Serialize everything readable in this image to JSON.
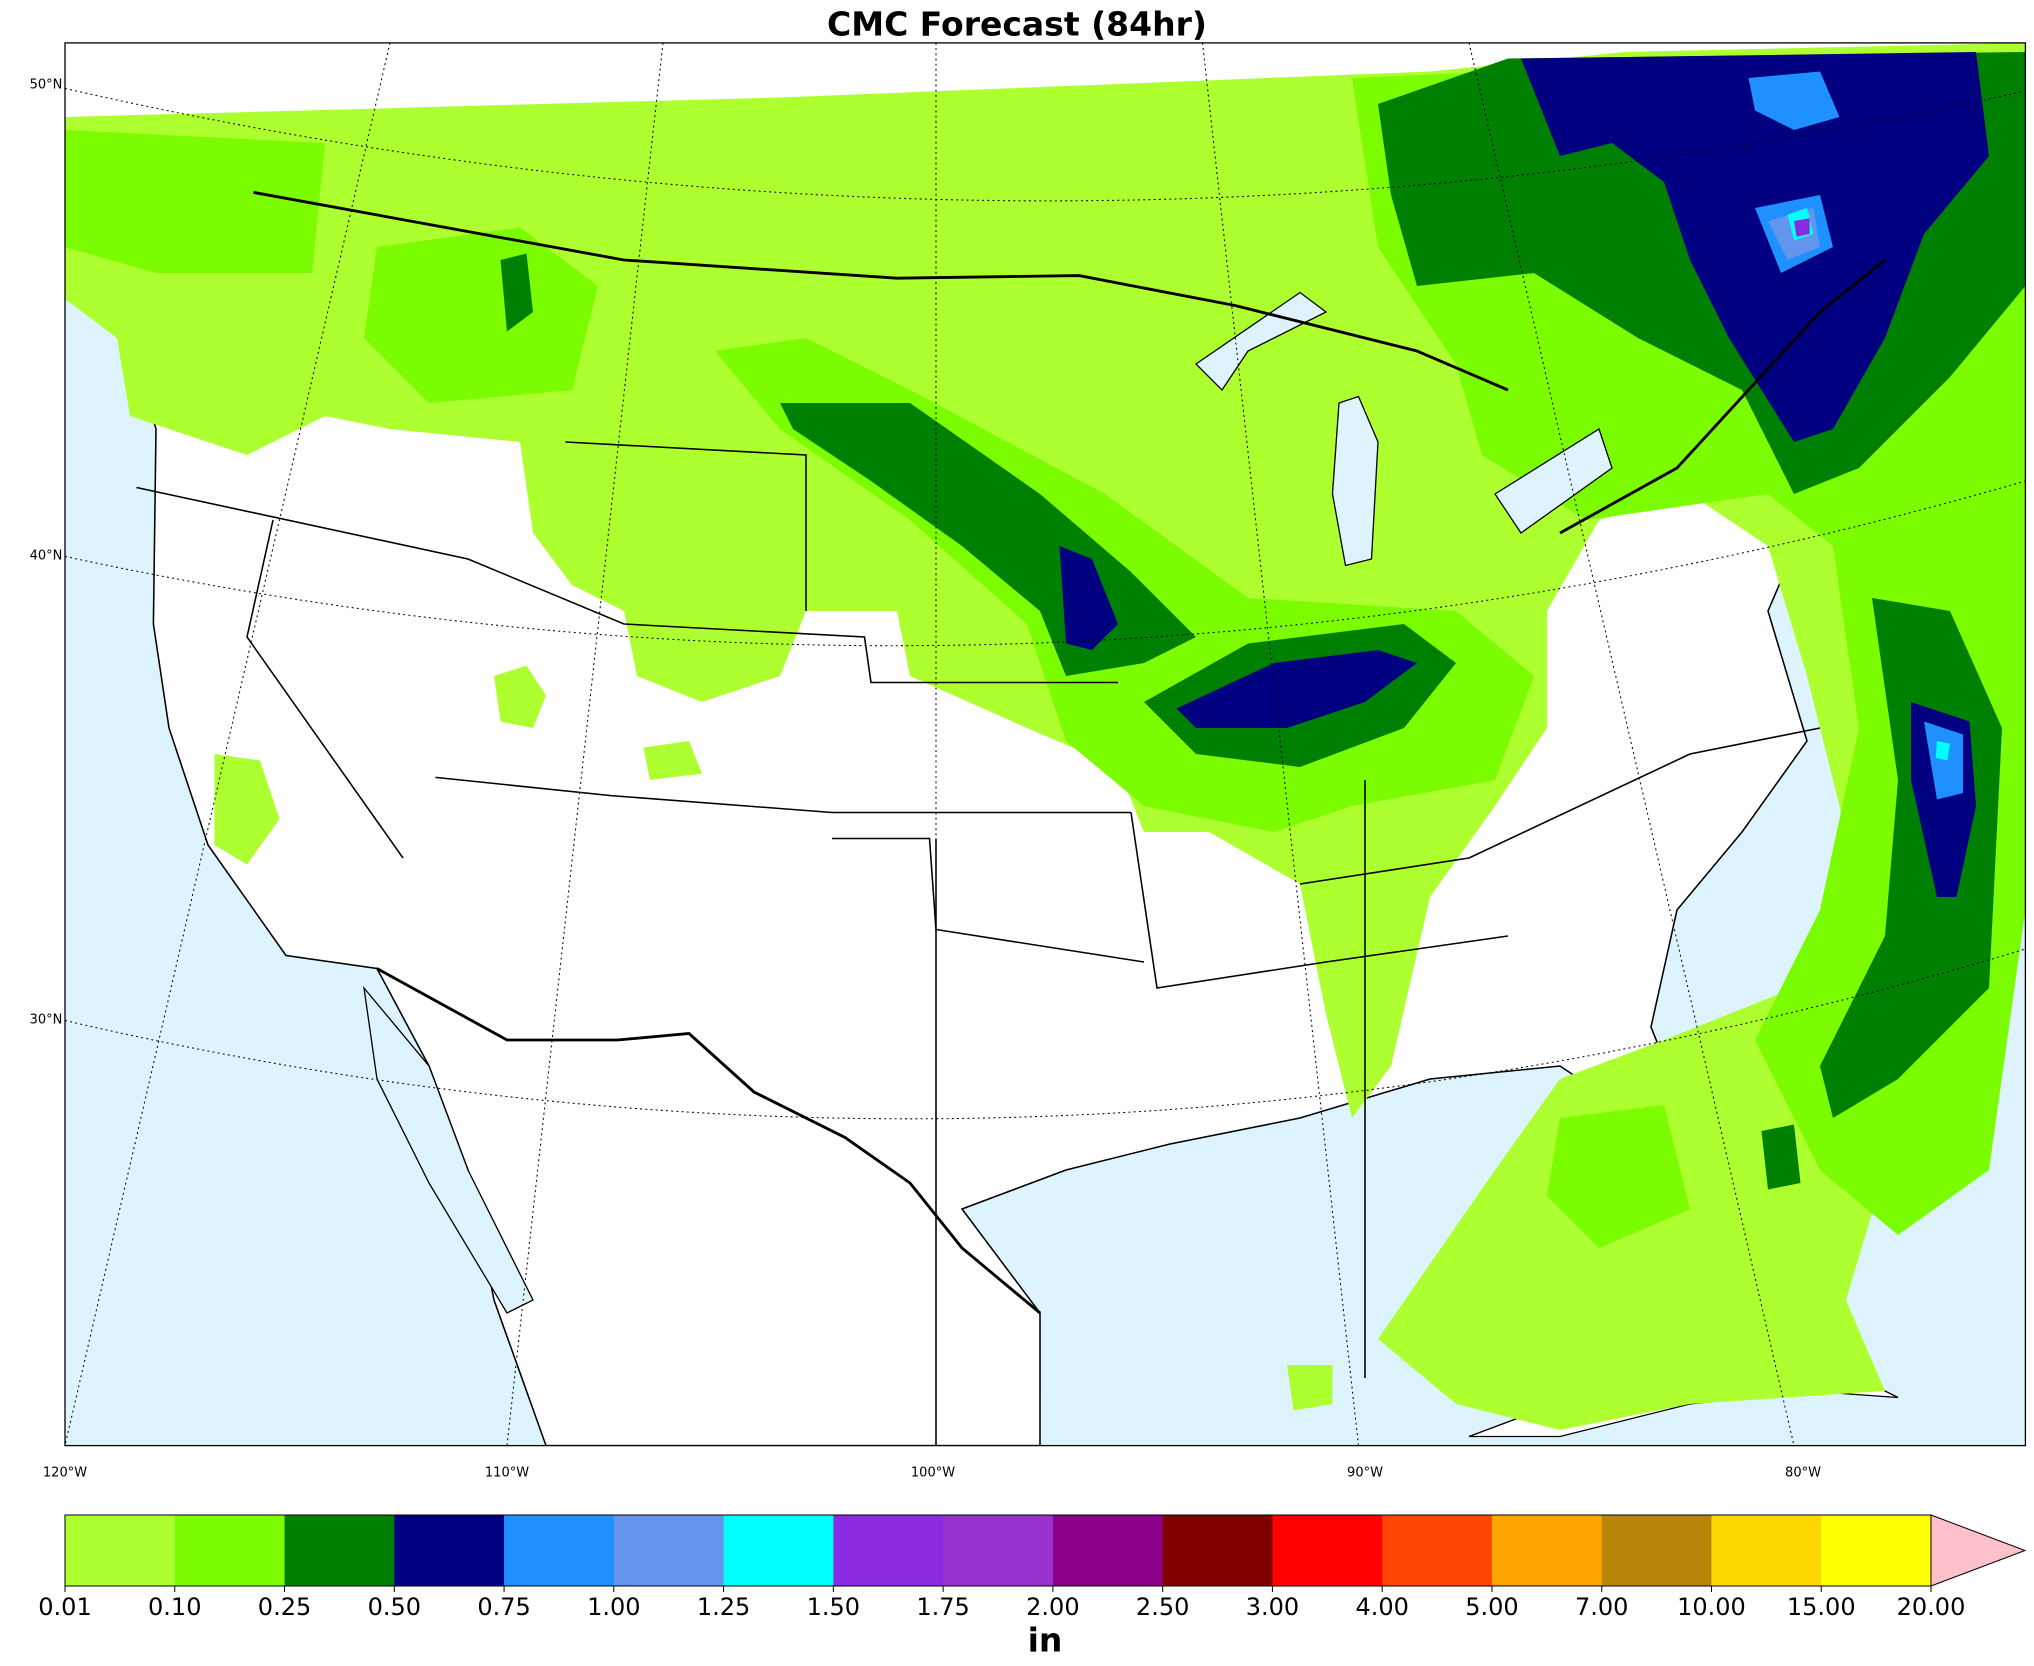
{
  "title": "CMC Forecast (84hr)",
  "lat_labels": [
    "50°N",
    "40°N",
    "30°N"
  ],
  "lon_labels": [
    "120°W",
    "110°W",
    "100°W",
    "90°W",
    "80°W"
  ],
  "colorbar": {
    "levels": [
      {
        "value": 0.01,
        "label": "0.01"
      },
      {
        "value": 0.1,
        "label": "0.10"
      },
      {
        "value": 0.25,
        "label": "0.25"
      },
      {
        "value": 0.5,
        "label": "0.50"
      },
      {
        "value": 0.75,
        "label": "0.75"
      },
      {
        "value": 1,
        "label": "1.00"
      },
      {
        "value": 1.25,
        "label": "1.25"
      },
      {
        "value": 1.5,
        "label": "1.50"
      },
      {
        "value": 1.75,
        "label": "1.75"
      },
      {
        "value": 2,
        "label": "2.00"
      },
      {
        "value": 2.5,
        "label": "2.50"
      },
      {
        "value": 3,
        "label": "3.00"
      },
      {
        "value": 4,
        "label": "4.00"
      },
      {
        "value": 5,
        "label": "5.00"
      },
      {
        "value": 7,
        "label": "7.00"
      },
      {
        "value": 10,
        "label": "10.00"
      },
      {
        "value": 15,
        "label": "15.00"
      },
      {
        "value": 20,
        "label": "20.00"
      }
    ],
    "colors": [
      "#adff2f",
      "#7cfc00",
      "#008000",
      "#000080",
      "#1e90ff",
      "#6495ed",
      "#00ffff",
      "#8a2be2",
      "#9932cc",
      "#8b008b",
      "#800000",
      "#ff0000",
      "#ff4500",
      "#ffa500",
      "#b8860b",
      "#ffd700",
      "#ffff00"
    ],
    "extend_color": "#ffc0cb",
    "unit": "in"
  }
}
